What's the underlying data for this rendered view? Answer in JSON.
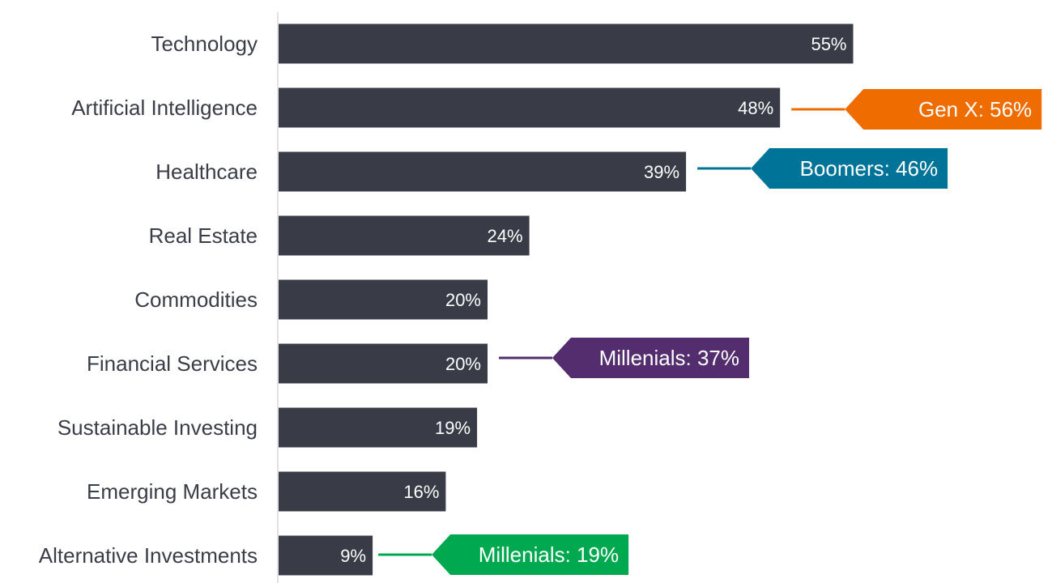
{
  "chart_data": {
    "type": "bar",
    "orientation": "horizontal",
    "categories": [
      "Technology",
      "Artificial Intelligence",
      "Healthcare",
      "Real Estate",
      "Commodities",
      "Financial Services",
      "Sustainable Investing",
      "Emerging Markets",
      "Alternative Investments"
    ],
    "values": [
      55,
      48,
      39,
      24,
      20,
      20,
      19,
      16,
      9
    ],
    "value_labels": [
      "55%",
      "48%",
      "39%",
      "24%",
      "20%",
      "20%",
      "19%",
      "16%",
      "9%"
    ],
    "xlim": [
      0,
      73
    ],
    "grid": false,
    "bar_color": "#393c47",
    "annotations": [
      {
        "category_index": 1,
        "label": "Gen X: 56%",
        "value": 56,
        "color": "#ef6c00"
      },
      {
        "category_index": 2,
        "label": "Boomers: 46%",
        "value": 46,
        "color": "#007398"
      },
      {
        "category_index": 5,
        "label": "Millenials: 37%",
        "value": 37,
        "color": "#532d6d"
      },
      {
        "category_index": 8,
        "label": "Millenials: 19%",
        "value": 19,
        "color": "#00a94f"
      }
    ]
  }
}
